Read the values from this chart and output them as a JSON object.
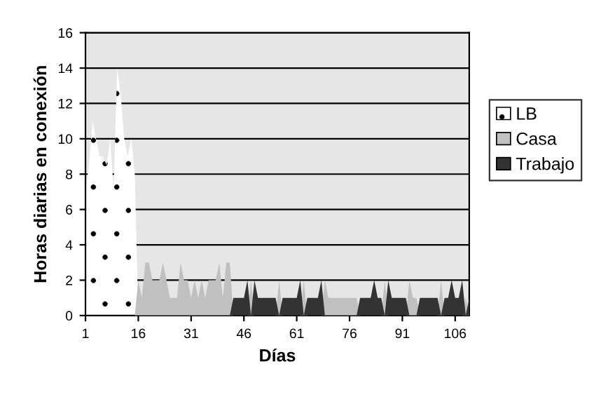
{
  "chart_data": {
    "type": "area",
    "ylabel": "Horas diarias en conexión",
    "xlabel": "Días",
    "categories": [
      "1",
      null,
      null,
      null,
      null,
      null,
      null,
      null,
      null,
      null,
      null,
      null,
      null,
      null,
      null,
      "16",
      null,
      null,
      null,
      null,
      null,
      null,
      null,
      null,
      null,
      null,
      null,
      null,
      null,
      null,
      "31",
      null,
      null,
      null,
      null,
      null,
      null,
      null,
      null,
      null,
      null,
      null,
      null,
      null,
      null,
      "46",
      null,
      null,
      null,
      null,
      null,
      null,
      null,
      null,
      null,
      null,
      null,
      null,
      null,
      null,
      "61",
      null,
      null,
      null,
      null,
      null,
      null,
      null,
      null,
      null,
      null,
      null,
      null,
      null,
      null,
      "76",
      null,
      null,
      null,
      null,
      null,
      null,
      null,
      null,
      null,
      null,
      null,
      null,
      null,
      null,
      "91",
      null,
      null,
      null,
      null,
      null,
      null,
      null,
      null,
      null,
      null,
      null,
      null,
      null,
      null,
      "106",
      null,
      null,
      null,
      null
    ],
    "ylim": [
      0,
      16
    ],
    "yticks": [
      0,
      2,
      4,
      6,
      8,
      10,
      12,
      14,
      16
    ],
    "grid": "y",
    "legend": "right",
    "series": [
      {
        "name": "LB",
        "color": "#ffffff",
        "values": [
          7.2,
          8.5,
          11,
          10,
          9,
          9,
          8.5,
          10,
          7,
          14,
          12.5,
          10,
          9,
          10,
          8,
          0,
          0,
          0,
          0,
          0,
          0,
          0,
          0,
          0,
          0,
          0,
          0,
          0,
          0,
          0,
          0,
          0,
          0,
          0,
          0,
          0,
          0,
          0,
          0,
          0,
          0,
          0,
          0,
          0,
          0,
          0,
          0,
          0,
          0,
          0,
          0,
          0,
          0,
          0,
          0,
          0,
          0,
          0,
          0,
          0,
          0,
          0,
          0,
          0,
          0,
          0,
          0,
          0,
          0,
          0,
          0,
          0,
          0,
          0,
          0,
          0,
          0,
          0,
          0,
          0,
          0,
          0,
          0,
          0,
          0,
          0,
          0,
          0,
          0,
          0,
          0,
          0,
          0,
          0,
          0,
          0,
          0,
          0,
          0,
          0,
          0,
          0,
          0,
          0,
          0,
          0,
          0,
          0,
          0,
          0
        ]
      },
      {
        "name": "Casa",
        "color": "#c0c0c0",
        "values": [
          0,
          0,
          0,
          0,
          0,
          0,
          0,
          0,
          0,
          0,
          0,
          0,
          0,
          0,
          0,
          2,
          1,
          3,
          3,
          2,
          2,
          2,
          3,
          2,
          1,
          1,
          1,
          3,
          2,
          2,
          1,
          2,
          1,
          2,
          1,
          2,
          2,
          2,
          3,
          1,
          3,
          3,
          0,
          0,
          0,
          0,
          0,
          2,
          0,
          0,
          0,
          0,
          0,
          0,
          0,
          2,
          0,
          0,
          0,
          0,
          0,
          0,
          2,
          0,
          0,
          0,
          0,
          0,
          2,
          1,
          1,
          1,
          1,
          1,
          1,
          1,
          1,
          1,
          0,
          0,
          0,
          0,
          0,
          0,
          0,
          2,
          0,
          0,
          0,
          0,
          0,
          0,
          2,
          1,
          1,
          0,
          0,
          0,
          0,
          0,
          0,
          2,
          0,
          0,
          0,
          0,
          0,
          0,
          1,
          0
        ]
      },
      {
        "name": "Trabajo",
        "color": "#333333",
        "values": [
          0,
          0,
          0,
          0,
          0,
          0,
          0,
          0,
          0,
          0,
          0,
          0,
          0,
          0,
          0,
          0,
          0,
          0,
          0,
          0,
          0,
          0,
          0,
          0,
          0,
          0,
          0,
          0,
          0,
          0,
          0,
          0,
          0,
          0,
          0,
          0,
          0,
          0,
          0,
          0,
          0,
          0,
          1,
          1,
          1,
          1,
          2,
          0,
          2,
          1,
          1,
          1,
          1,
          1,
          1,
          0,
          1,
          1,
          1,
          1,
          1,
          2,
          0,
          1,
          1,
          1,
          1,
          2,
          0,
          0,
          0,
          0,
          0,
          0,
          0,
          0,
          0,
          0,
          1,
          1,
          1,
          1,
          2,
          1,
          1,
          0,
          2,
          1,
          1,
          1,
          1,
          1,
          0,
          0,
          0,
          1,
          1,
          1,
          1,
          1,
          1,
          0,
          1,
          1,
          2,
          1,
          1,
          2,
          0,
          1
        ]
      }
    ]
  }
}
